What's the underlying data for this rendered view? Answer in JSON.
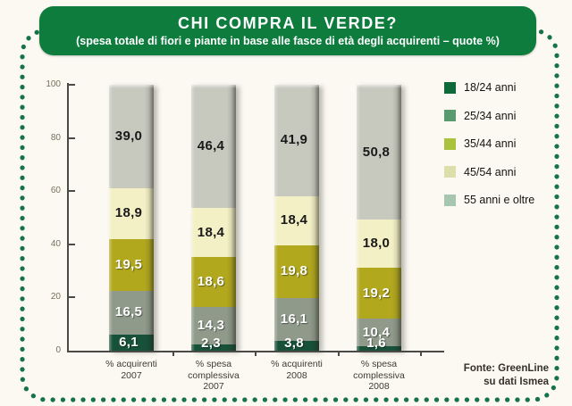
{
  "title": {
    "heading": "CHI COMPRA IL VERDE?",
    "subtitle": "(spesa totale di fiori e piante in base alle fasce di età degli acquirenti – quote %)"
  },
  "source": {
    "line1": "Fonte: GreenLine",
    "line2": "su dati Ismea"
  },
  "colors": {
    "title_bg": "#0d7c3d",
    "border_dots": "#157347",
    "axis": "#4a4a46",
    "page_bg": "#fbf9f2"
  },
  "chart_data": {
    "type": "bar",
    "stacked": true,
    "title": "CHI COMPRA IL VERDE?",
    "subtitle": "(spesa totale di fiori e piante in base alle fasce di età degli acquirenti – quote %)",
    "categories": [
      [
        "% acquirenti",
        "2007"
      ],
      [
        "% spesa",
        "complessiva",
        "2007"
      ],
      [
        "% acquirenti",
        "2008"
      ],
      [
        "% spesa",
        "complessiva",
        "2008"
      ]
    ],
    "series": [
      {
        "name": "18/24 anni",
        "values": [
          6.1,
          2.3,
          3.8,
          1.6
        ],
        "bar_color": "#17513a",
        "legend_color": "#0e6b39",
        "label_color": "#ffffff"
      },
      {
        "name": "25/34 anni",
        "values": [
          16.5,
          14.3,
          16.1,
          10.4
        ],
        "bar_color": "#8f9a8b",
        "legend_color": "#579b6e",
        "label_color": "#ffffff"
      },
      {
        "name": "35/44 anni",
        "values": [
          19.5,
          18.6,
          19.8,
          19.2
        ],
        "bar_color": "#b2a81e",
        "legend_color": "#a9c33c",
        "label_color": "#ffffff"
      },
      {
        "name": "45/54 anni",
        "values": [
          18.9,
          18.4,
          18.4,
          18.0
        ],
        "bar_color": "#f3f0c6",
        "legend_color": "#dcdfa9",
        "label_color": "#1a1a1a"
      },
      {
        "name": "55 anni e oltre",
        "values": [
          39.0,
          46.4,
          41.9,
          50.8
        ],
        "bar_color": "#c7c9bf",
        "legend_color": "#a7c6b0",
        "label_color": "#1a1a1a"
      }
    ],
    "ylim": [
      0,
      100
    ],
    "yticks": [
      0,
      20,
      40,
      60,
      80,
      100
    ],
    "grid": false,
    "legend_position": "right",
    "decimal_separator": ","
  }
}
